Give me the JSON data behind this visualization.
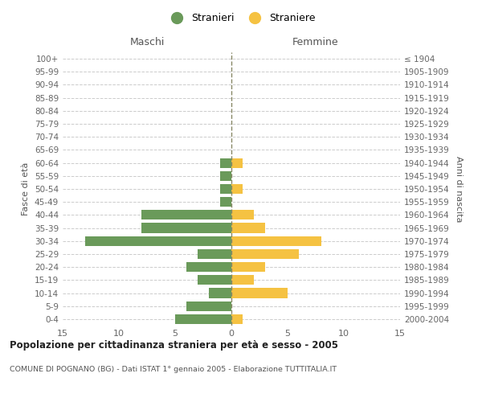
{
  "age_groups": [
    "0-4",
    "5-9",
    "10-14",
    "15-19",
    "20-24",
    "25-29",
    "30-34",
    "35-39",
    "40-44",
    "45-49",
    "50-54",
    "55-59",
    "60-64",
    "65-69",
    "70-74",
    "75-79",
    "80-84",
    "85-89",
    "90-94",
    "95-99",
    "100+"
  ],
  "birth_years": [
    "2000-2004",
    "1995-1999",
    "1990-1994",
    "1985-1989",
    "1980-1984",
    "1975-1979",
    "1970-1974",
    "1965-1969",
    "1960-1964",
    "1955-1959",
    "1950-1954",
    "1945-1949",
    "1940-1944",
    "1935-1939",
    "1930-1934",
    "1925-1929",
    "1920-1924",
    "1915-1919",
    "1910-1914",
    "1905-1909",
    "≤ 1904"
  ],
  "males": [
    5,
    4,
    2,
    3,
    4,
    3,
    13,
    8,
    8,
    1,
    1,
    1,
    1,
    0,
    0,
    0,
    0,
    0,
    0,
    0,
    0
  ],
  "females": [
    1,
    0,
    5,
    2,
    3,
    6,
    8,
    3,
    2,
    0,
    1,
    0,
    1,
    0,
    0,
    0,
    0,
    0,
    0,
    0,
    0
  ],
  "male_color": "#6a9a5a",
  "female_color": "#f5c242",
  "title": "Popolazione per cittadinanza straniera per età e sesso - 2005",
  "subtitle": "COMUNE DI POGNANO (BG) - Dati ISTAT 1° gennaio 2005 - Elaborazione TUTTITALIA.IT",
  "ylabel_left": "Fasce di età",
  "ylabel_right": "Anni di nascita",
  "xlabel_left": "Maschi",
  "xlabel_right": "Femmine",
  "legend_male": "Stranieri",
  "legend_female": "Straniere",
  "xlim": 15,
  "background_color": "#ffffff",
  "grid_color": "#cccccc",
  "axis_label_color": "#555555",
  "tick_label_color": "#666666",
  "centerline_color": "#888866",
  "dpi": 100
}
